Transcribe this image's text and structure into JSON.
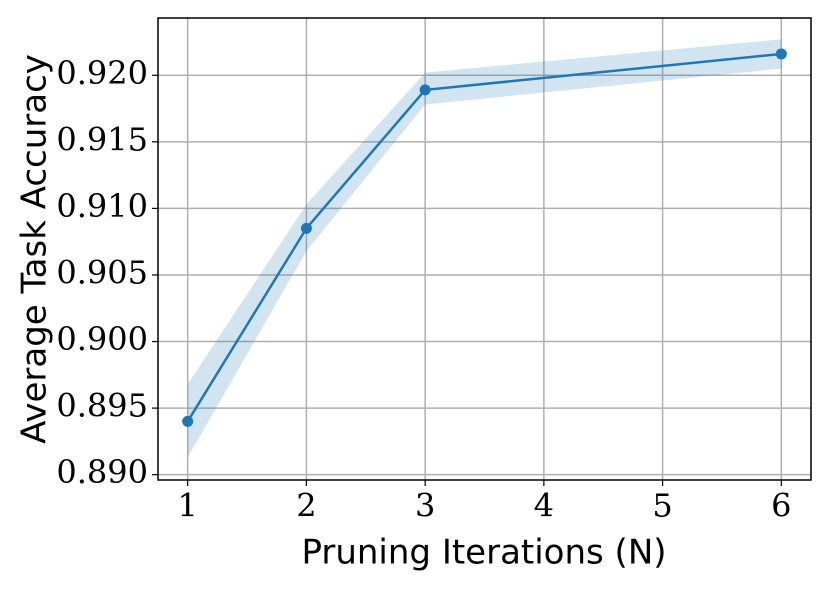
{
  "chart_data": {
    "type": "line",
    "xlabel": "Pruning Iterations (N)",
    "ylabel": "Average Task Accuracy",
    "x": [
      1,
      2,
      3,
      6
    ],
    "series": [
      {
        "color": "#1f77b4",
        "values": [
          0.894,
          0.9085,
          0.9189,
          0.9216
        ]
      }
    ],
    "band_upper": [
      0.8968,
      0.9103,
      0.9202,
      0.9227
    ],
    "band_lower": [
      0.8913,
      0.9068,
      0.9178,
      0.9205
    ],
    "band_color": "#1f77b4",
    "xlim": [
      0.75,
      6.25
    ],
    "xticks": [
      1,
      2,
      3,
      4,
      5,
      6
    ],
    "ylim": [
      0.8896,
      0.9243
    ],
    "yticks": [
      {
        "value": 0.89,
        "label": "0.890"
      },
      0.895,
      {
        "value": 0.9,
        "label": "0.900"
      },
      0.905,
      {
        "value": 0.91,
        "label": "0.910"
      },
      0.915,
      {
        "value": 0.92,
        "label": "0.920"
      }
    ],
    "grid": true
  }
}
